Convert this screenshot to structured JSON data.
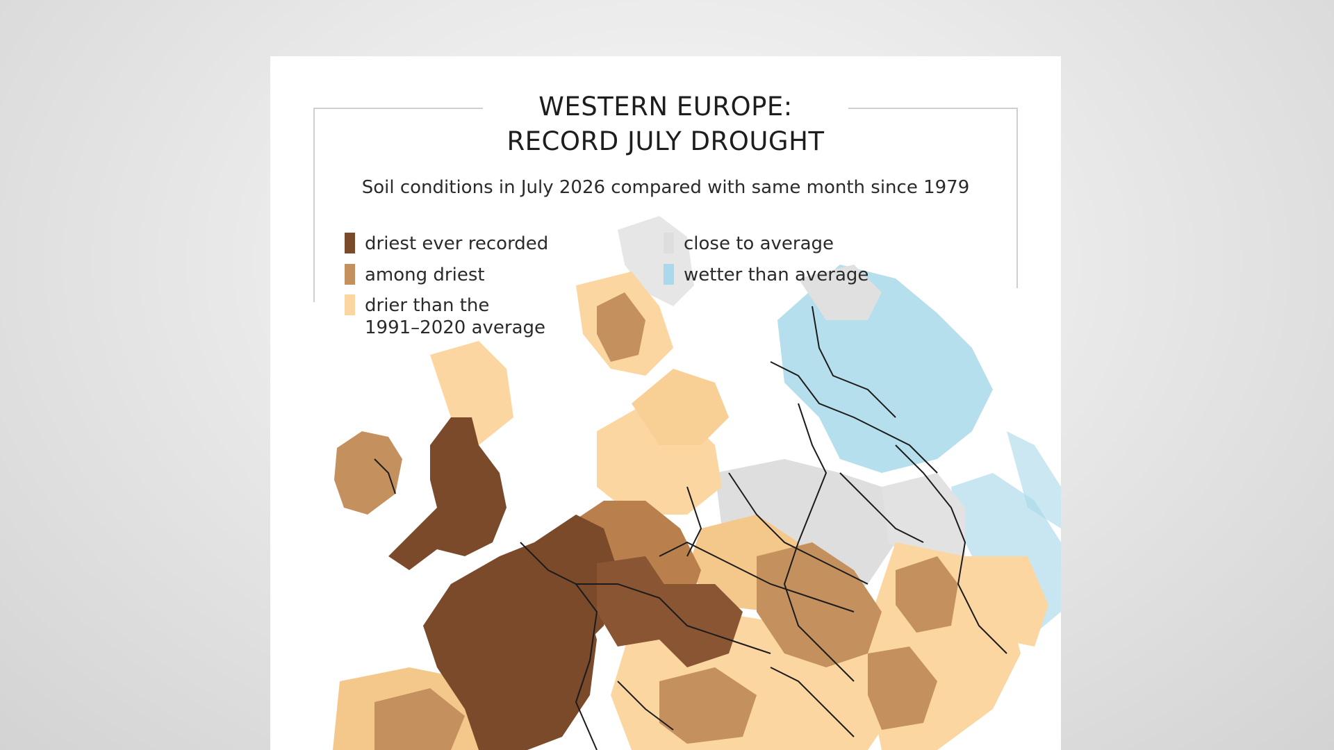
{
  "title": {
    "line1": "WESTERN EUROPE:",
    "line2": "RECORD JULY DROUGHT"
  },
  "subtitle": "Soil conditions in July 2026 compared with same month since 1979",
  "legend": {
    "driest": {
      "label": "driest ever recorded",
      "color": "#7a4a2b"
    },
    "among": {
      "label": "among driest",
      "color": "#c4915e"
    },
    "drier_line1": "drier than the",
    "drier_line2": "1991–2020 average",
    "drier_color": "#fbd6a0",
    "close": {
      "label": "close to average",
      "color": "#dedede"
    },
    "wetter": {
      "label": "wetter than average",
      "color": "#a9d9ea"
    }
  }
}
